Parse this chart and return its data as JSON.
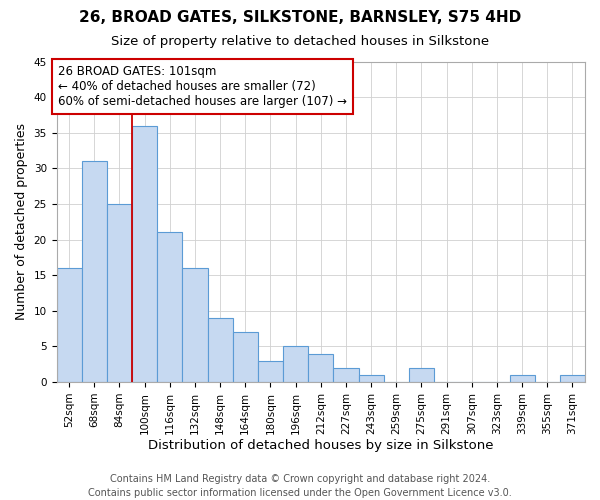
{
  "title": "26, BROAD GATES, SILKSTONE, BARNSLEY, S75 4HD",
  "subtitle": "Size of property relative to detached houses in Silkstone",
  "xlabel": "Distribution of detached houses by size in Silkstone",
  "ylabel": "Number of detached properties",
  "bin_labels": [
    "52sqm",
    "68sqm",
    "84sqm",
    "100sqm",
    "116sqm",
    "132sqm",
    "148sqm",
    "164sqm",
    "180sqm",
    "196sqm",
    "212sqm",
    "227sqm",
    "243sqm",
    "259sqm",
    "275sqm",
    "291sqm",
    "307sqm",
    "323sqm",
    "339sqm",
    "355sqm",
    "371sqm"
  ],
  "bar_heights": [
    16,
    31,
    25,
    36,
    21,
    16,
    9,
    7,
    3,
    5,
    4,
    2,
    1,
    0,
    2,
    0,
    0,
    0,
    1,
    0,
    1
  ],
  "bar_color": "#c6d9f1",
  "bar_edge_color": "#5b9bd5",
  "vline_idx": 3,
  "vline_color": "#cc0000",
  "ylim": [
    0,
    45
  ],
  "annotation_text": "26 BROAD GATES: 101sqm\n← 40% of detached houses are smaller (72)\n60% of semi-detached houses are larger (107) →",
  "annotation_box_edge": "#cc0000",
  "footer_line1": "Contains HM Land Registry data © Crown copyright and database right 2024.",
  "footer_line2": "Contains public sector information licensed under the Open Government Licence v3.0.",
  "title_fontsize": 11,
  "subtitle_fontsize": 9.5,
  "ylabel_fontsize": 9,
  "xlabel_fontsize": 9.5,
  "tick_fontsize": 7.5,
  "footer_fontsize": 7,
  "annotation_fontsize": 8.5,
  "background_color": "#ffffff",
  "grid_color": "#d0d0d0"
}
